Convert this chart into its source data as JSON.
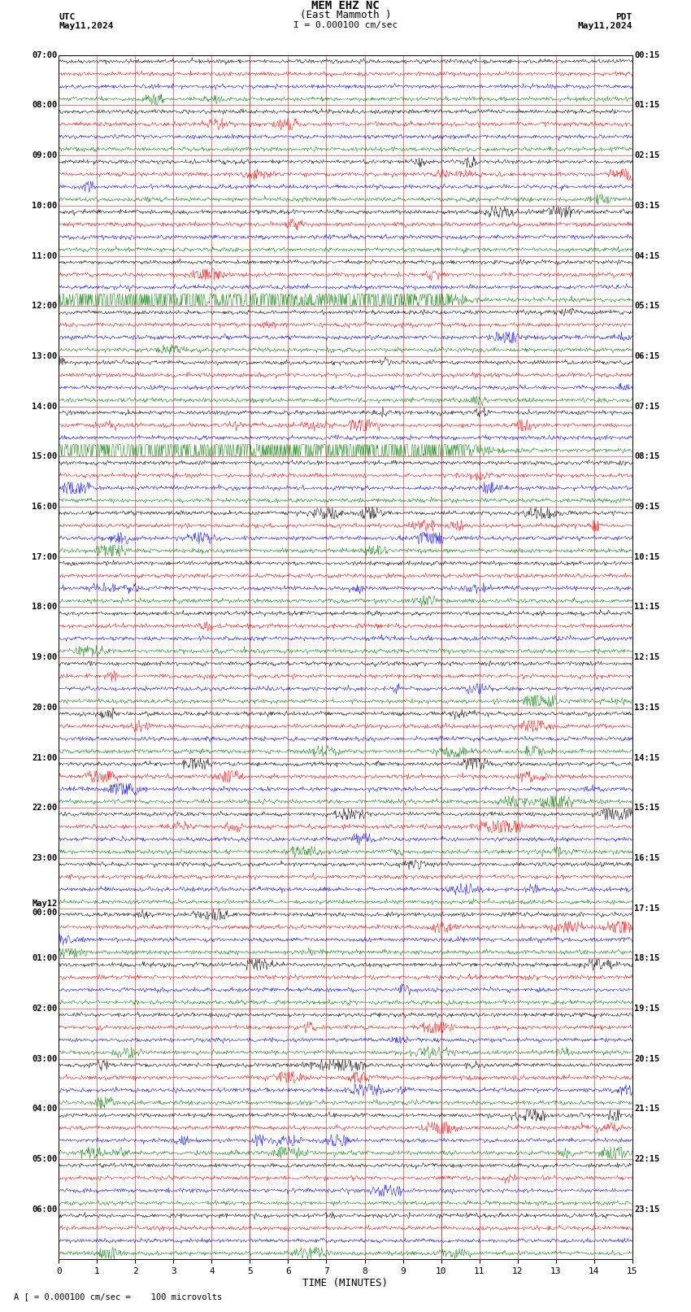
{
  "title_line1": "MEM EHZ NC",
  "title_line2": "(East Mammoth )",
  "scale_text": "I = 0.000100 cm/sec",
  "footer_text": "A [ = 0.000100 cm/sec =    100 microvolts",
  "xlabel": "TIME (MINUTES)",
  "left_header_line1": "UTC",
  "left_header_line2": "May11,2024",
  "right_header_line1": "PDT",
  "right_header_line2": "May11,2024",
  "num_hours": 24,
  "traces_per_hour": 4,
  "minutes_per_row": 15,
  "colors": [
    "black",
    "red",
    "blue",
    "green"
  ],
  "bg_color": "white",
  "grid_major_color": "#cc0000",
  "grid_minor_color": "#ddbbbb",
  "fig_width": 8.5,
  "fig_height": 16.13,
  "dpi": 100,
  "left_times_utc": [
    "07:00",
    "08:00",
    "09:00",
    "10:00",
    "11:00",
    "12:00",
    "13:00",
    "14:00",
    "15:00",
    "16:00",
    "17:00",
    "18:00",
    "19:00",
    "20:00",
    "21:00",
    "22:00",
    "23:00",
    "May12\n00:00",
    "01:00",
    "02:00",
    "03:00",
    "04:00",
    "05:00",
    "06:00"
  ],
  "right_times_pdt": [
    "00:15",
    "01:15",
    "02:15",
    "03:15",
    "04:15",
    "05:15",
    "06:15",
    "07:15",
    "08:15",
    "09:15",
    "10:15",
    "11:15",
    "12:15",
    "13:15",
    "14:15",
    "15:15",
    "16:15",
    "17:15",
    "18:15",
    "19:15",
    "20:15",
    "21:15",
    "22:15",
    "23:15"
  ],
  "noise_amplitude": 0.08,
  "seed": 42,
  "lw": 0.35
}
